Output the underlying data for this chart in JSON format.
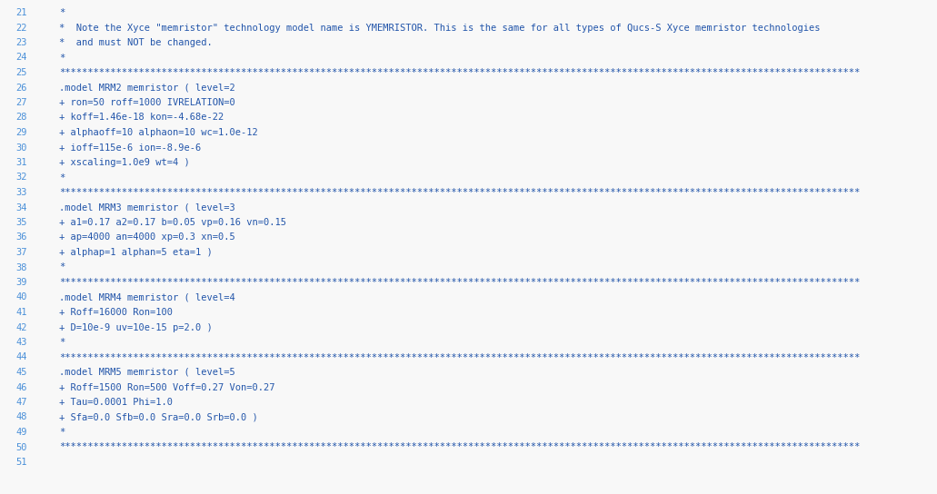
{
  "background_color": "#f8f8f8",
  "line_number_color": "#4a90d9",
  "text_color": "#2255aa",
  "font_family": "DejaVu Sans Mono",
  "font_size": 7.5,
  "figsize": [
    10.31,
    5.44
  ],
  "dpi": 100,
  "lines": [
    {
      "num": 21,
      "text": "*"
    },
    {
      "num": 22,
      "text": "*  Note the Xyce \"memristor\" technology model name is YMEMRISTOR. This is the same for all types of Qucs-S Xyce memristor technologies"
    },
    {
      "num": 23,
      "text": "*  and must NOT be changed."
    },
    {
      "num": 24,
      "text": "*"
    },
    {
      "num": 25,
      "text": "*********************************************************************************************************************************************"
    },
    {
      "num": 26,
      "text": ".model MRM2 memristor ( level=2"
    },
    {
      "num": 27,
      "text": "+ ron=50 roff=1000 IVRELATION=0"
    },
    {
      "num": 28,
      "text": "+ koff=1.46e-18 kon=-4.68e-22"
    },
    {
      "num": 29,
      "text": "+ alphaoff=10 alphaon=10 wc=1.0e-12"
    },
    {
      "num": 30,
      "text": "+ ioff=115e-6 ion=-8.9e-6"
    },
    {
      "num": 31,
      "text": "+ xscaling=1.0e9 wt=4 )"
    },
    {
      "num": 32,
      "text": "*"
    },
    {
      "num": 33,
      "text": "*********************************************************************************************************************************************"
    },
    {
      "num": 34,
      "text": ".model MRM3 memristor ( level=3"
    },
    {
      "num": 35,
      "text": "+ a1=0.17 a2=0.17 b=0.05 vp=0.16 vn=0.15"
    },
    {
      "num": 36,
      "text": "+ ap=4000 an=4000 xp=0.3 xn=0.5"
    },
    {
      "num": 37,
      "text": "+ alphap=1 alphan=5 eta=1 )"
    },
    {
      "num": 38,
      "text": "*"
    },
    {
      "num": 39,
      "text": "*********************************************************************************************************************************************"
    },
    {
      "num": 40,
      "text": ".model MRM4 memristor ( level=4"
    },
    {
      "num": 41,
      "text": "+ Roff=16000 Ron=100"
    },
    {
      "num": 42,
      "text": "+ D=10e-9 uv=10e-15 p=2.0 )"
    },
    {
      "num": 43,
      "text": "*"
    },
    {
      "num": 44,
      "text": "*********************************************************************************************************************************************"
    },
    {
      "num": 45,
      "text": ".model MRM5 memristor ( level=5"
    },
    {
      "num": 46,
      "text": "+ Roff=1500 Ron=500 Voff=0.27 Von=0.27"
    },
    {
      "num": 47,
      "text": "+ Tau=0.0001 Phi=1.0"
    },
    {
      "num": 48,
      "text": "+ Sfa=0.0 Sfb=0.0 Sra=0.0 Srb=0.0 )"
    },
    {
      "num": 49,
      "text": "*"
    },
    {
      "num": 50,
      "text": "*********************************************************************************************************************************************"
    },
    {
      "num": 51,
      "text": ""
    }
  ]
}
